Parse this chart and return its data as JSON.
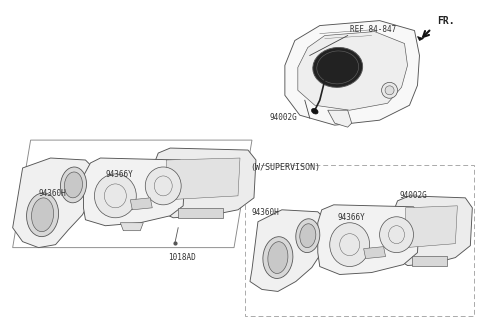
{
  "bg_color": "#ffffff",
  "line_color": "#444444",
  "label_color": "#333333",
  "fr_text": "FR.",
  "ref_text": "REF 84-847",
  "label_94002G_top": "94002G",
  "label_94366Y_left": "94366Y",
  "label_94360H_left": "94360H",
  "label_1018AD": "1018AD",
  "wsupervison_text": "(W/SUPERVISON)",
  "label_94002G_right": "94002G",
  "label_94366Y_right": "94366Y",
  "label_94360H_right": "94360H",
  "font_size_labels": 5.5,
  "font_size_ref": 5.5,
  "font_size_fr": 7.0,
  "font_size_wsup": 6.0
}
